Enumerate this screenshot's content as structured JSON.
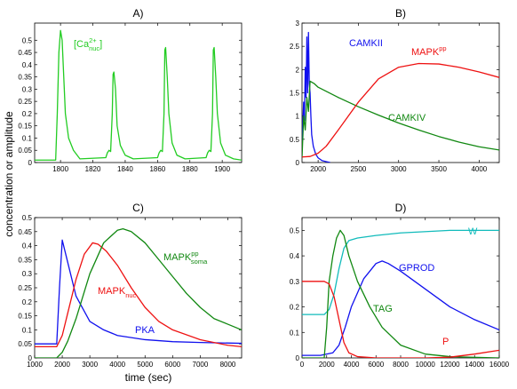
{
  "ylabel": "concentration or amplitude",
  "xlabel": "time (sec)",
  "colors": {
    "green": "#22cc22",
    "red": "#ee1111",
    "darkgreen": "#118811",
    "blue": "#1111ee",
    "cyan": "#11bbbb",
    "black": "#000000"
  },
  "chart_data": [
    {
      "panel": "A)",
      "type": "line",
      "xlim": [
        1784,
        1912
      ],
      "ylim": [
        0,
        0.57
      ],
      "xticks": [
        1800,
        1820,
        1840,
        1860,
        1880,
        1900
      ],
      "yticks": [
        0,
        0.05,
        0.1,
        0.15,
        0.2,
        0.25,
        0.3,
        0.35,
        0.4,
        0.45,
        0.5
      ],
      "ytick_labels": [
        "0",
        "0.05",
        "0.1",
        "0.15",
        "0.2",
        "0.25",
        "0.3",
        "0.35",
        "0.4",
        "0.45",
        "0.5"
      ],
      "annotations": [
        {
          "text": "[Ca",
          "sup": "2+",
          "sub": "nuc",
          "suffix": "]",
          "color": "#22cc22",
          "series": "Ca"
        }
      ],
      "series": [
        {
          "name": "Ca",
          "color": "#22cc22",
          "x": [
            1784,
            1797,
            1798,
            1799,
            1800,
            1801,
            1802,
            1803,
            1805,
            1808,
            1812,
            1828,
            1829,
            1830,
            1831,
            1832,
            1832.5,
            1833,
            1834,
            1835,
            1837,
            1840,
            1845,
            1860,
            1861,
            1862,
            1863,
            1864,
            1864.5,
            1865,
            1866,
            1867,
            1869,
            1872,
            1877,
            1890,
            1891,
            1892,
            1893,
            1894,
            1894.5,
            1895,
            1896,
            1897,
            1899,
            1902,
            1907,
            1912
          ],
          "y": [
            0.01,
            0.01,
            0.2,
            0.45,
            0.54,
            0.5,
            0.35,
            0.2,
            0.1,
            0.05,
            0.015,
            0.02,
            0.04,
            0.05,
            0.045,
            0.2,
            0.36,
            0.37,
            0.3,
            0.15,
            0.07,
            0.03,
            0.015,
            0.02,
            0.04,
            0.05,
            0.045,
            0.2,
            0.46,
            0.47,
            0.35,
            0.2,
            0.08,
            0.03,
            0.015,
            0.02,
            0.04,
            0.05,
            0.045,
            0.2,
            0.46,
            0.47,
            0.35,
            0.2,
            0.08,
            0.03,
            0.015,
            0.01
          ]
        }
      ]
    },
    {
      "panel": "B)",
      "type": "line",
      "xlim": [
        1800,
        4250
      ],
      "ylim": [
        0,
        3
      ],
      "xticks": [
        2000,
        2500,
        3000,
        3500,
        4000
      ],
      "yticks": [
        0,
        0.5,
        1,
        1.5,
        2,
        2.5,
        3
      ],
      "ytick_labels": [
        "0",
        "0.5",
        "1",
        "1.5",
        "2",
        "2.5",
        "3"
      ],
      "annotations": [
        {
          "text": "CAMKII",
          "color": "#1111ee",
          "series": "CAMKII"
        },
        {
          "text": "MAPK",
          "sup": "pp",
          "color": "#ee1111",
          "series": "MAPKpp"
        },
        {
          "text": "CAMKIV",
          "color": "#118811",
          "series": "CAMKIV"
        }
      ],
      "series": [
        {
          "name": "CAMKII",
          "color": "#1111ee",
          "x": [
            1800,
            1820,
            1830,
            1840,
            1850,
            1860,
            1870,
            1880,
            1890,
            1900,
            1910,
            1920,
            1940,
            1970,
            2000,
            2050,
            2100,
            2150
          ],
          "y": [
            0.4,
            1.3,
            0.9,
            2.05,
            1.4,
            2.7,
            1.5,
            2.8,
            1.7,
            1.5,
            1.0,
            0.6,
            0.35,
            0.18,
            0.1,
            0.04,
            0.02,
            0.0
          ]
        },
        {
          "name": "CAMKIV",
          "color": "#118811",
          "x": [
            1800,
            1820,
            1840,
            1860,
            1880,
            1900,
            1950,
            2000,
            2250,
            2500,
            2750,
            3000,
            3250,
            3500,
            3750,
            4000,
            4250
          ],
          "y": [
            0.1,
            1.0,
            0.7,
            1.4,
            1.1,
            1.75,
            1.7,
            1.62,
            1.4,
            1.2,
            1.02,
            0.85,
            0.7,
            0.56,
            0.44,
            0.34,
            0.27
          ]
        },
        {
          "name": "MAPKpp",
          "color": "#ee1111",
          "x": [
            1800,
            1900,
            2000,
            2100,
            2250,
            2500,
            2750,
            3000,
            3250,
            3500,
            3750,
            4000,
            4250
          ],
          "y": [
            0.12,
            0.13,
            0.2,
            0.35,
            0.7,
            1.3,
            1.8,
            2.05,
            2.13,
            2.12,
            2.05,
            1.95,
            1.83
          ]
        }
      ]
    },
    {
      "panel": "C)",
      "type": "line",
      "xlim": [
        1000,
        8500
      ],
      "ylim": [
        0,
        0.5
      ],
      "xticks": [
        1000,
        2000,
        3000,
        4000,
        5000,
        6000,
        7000,
        8000
      ],
      "yticks": [
        0,
        0.05,
        0.1,
        0.15,
        0.2,
        0.25,
        0.3,
        0.35,
        0.4,
        0.45,
        0.5
      ],
      "ytick_labels": [
        "0",
        "0.05",
        "0.1",
        "0.15",
        "0.2",
        "0.25",
        "0.3",
        "0.35",
        "0.4",
        "0.45",
        "0.5"
      ],
      "annotations": [
        {
          "text": "MAPK",
          "sup": "pp",
          "sub": "soma",
          "color": "#118811",
          "series": "MAPKpp_soma"
        },
        {
          "text": "MAPK",
          "sub": "nuc",
          "color": "#ee1111",
          "series": "MAPK_nuc"
        },
        {
          "text": "PKA",
          "color": "#1111ee",
          "series": "PKA"
        }
      ],
      "series": [
        {
          "name": "PKA",
          "color": "#1111ee",
          "x": [
            1000,
            1800,
            1900,
            2000,
            2100,
            2300,
            2500,
            3000,
            3500,
            4000,
            5000,
            6000,
            7000,
            8500
          ],
          "y": [
            0.05,
            0.05,
            0.25,
            0.42,
            0.38,
            0.3,
            0.22,
            0.13,
            0.1,
            0.08,
            0.065,
            0.058,
            0.055,
            0.052
          ]
        },
        {
          "name": "MAPK_nuc",
          "color": "#ee1111",
          "x": [
            1000,
            1800,
            2000,
            2200,
            2500,
            2800,
            3100,
            3300,
            3600,
            4000,
            4500,
            5000,
            5500,
            6000,
            7000,
            8000,
            8500
          ],
          "y": [
            0.04,
            0.04,
            0.08,
            0.16,
            0.28,
            0.37,
            0.41,
            0.405,
            0.38,
            0.33,
            0.25,
            0.18,
            0.13,
            0.1,
            0.065,
            0.045,
            0.04
          ]
        },
        {
          "name": "MAPKpp_soma",
          "color": "#118811",
          "x": [
            1000,
            1800,
            2000,
            2200,
            2500,
            3000,
            3500,
            4000,
            4200,
            4500,
            5000,
            5500,
            6000,
            6500,
            7000,
            7500,
            8000,
            8500
          ],
          "y": [
            0.0,
            0.0,
            0.02,
            0.06,
            0.14,
            0.3,
            0.41,
            0.455,
            0.46,
            0.45,
            0.41,
            0.35,
            0.29,
            0.23,
            0.18,
            0.14,
            0.12,
            0.1
          ]
        }
      ]
    },
    {
      "panel": "D)",
      "type": "line",
      "xlim": [
        0,
        16000
      ],
      "ylim": [
        0,
        0.55
      ],
      "xticks": [
        0,
        2000,
        4000,
        6000,
        8000,
        10000,
        12000,
        14000,
        16000
      ],
      "yticks": [
        0,
        0.1,
        0.2,
        0.3,
        0.4,
        0.5
      ],
      "ytick_labels": [
        "0",
        "0.1",
        "0.2",
        "0.3",
        "0.4",
        "0.5"
      ],
      "annotations": [
        {
          "text": "W",
          "color": "#11bbbb",
          "series": "W"
        },
        {
          "text": "GPROD",
          "color": "#1111ee",
          "series": "GPROD"
        },
        {
          "text": "TAG",
          "color": "#118811",
          "series": "TAG"
        },
        {
          "text": "P",
          "color": "#ee1111",
          "series": "P"
        }
      ],
      "series": [
        {
          "name": "W",
          "color": "#11bbbb",
          "x": [
            0,
            1800,
            2200,
            2600,
            3000,
            3400,
            3800,
            4500,
            6000,
            8000,
            12000,
            16000
          ],
          "y": [
            0.17,
            0.17,
            0.19,
            0.25,
            0.35,
            0.43,
            0.46,
            0.47,
            0.48,
            0.49,
            0.5,
            0.5
          ]
        },
        {
          "name": "GPROD",
          "color": "#1111ee",
          "x": [
            0,
            1500,
            2500,
            3000,
            3500,
            4000,
            5000,
            6000,
            6500,
            7000,
            8000,
            10000,
            12000,
            14000,
            16000
          ],
          "y": [
            0.01,
            0.01,
            0.02,
            0.05,
            0.12,
            0.2,
            0.31,
            0.37,
            0.38,
            0.37,
            0.34,
            0.27,
            0.2,
            0.15,
            0.11
          ]
        },
        {
          "name": "TAG",
          "color": "#118811",
          "x": [
            0,
            1800,
            2000,
            2200,
            2500,
            2800,
            3100,
            3400,
            3800,
            4500,
            5500,
            6500,
            8000,
            10000,
            12000,
            16000
          ],
          "y": [
            0.0,
            0.0,
            0.12,
            0.3,
            0.4,
            0.47,
            0.5,
            0.48,
            0.4,
            0.3,
            0.2,
            0.12,
            0.05,
            0.015,
            0.005,
            0.0
          ]
        },
        {
          "name": "P",
          "color": "#ee1111",
          "x": [
            0,
            1800,
            2200,
            2600,
            3000,
            3400,
            3800,
            4500,
            6000,
            10000,
            12000,
            14000,
            16000
          ],
          "y": [
            0.3,
            0.3,
            0.29,
            0.24,
            0.15,
            0.06,
            0.02,
            0.005,
            0.0,
            0.0,
            0.003,
            0.015,
            0.03
          ]
        }
      ]
    }
  ]
}
